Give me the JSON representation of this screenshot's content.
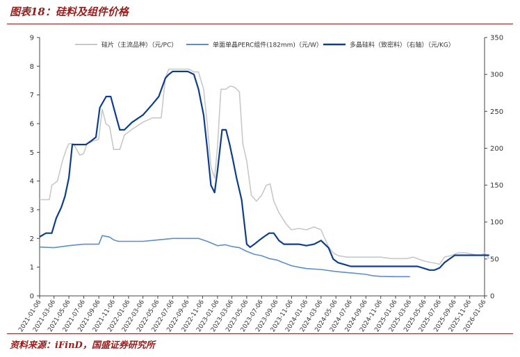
{
  "figure_title": "图表18：硅料及组件价格",
  "source_note": "资料来源：iFinD，国盛证券研究所",
  "colors": {
    "title": "#9b1b1b",
    "wafer": "#c8c8c8",
    "module": "#5b8ec9",
    "poly": "#0d3d8c"
  },
  "chart_data": {
    "type": "line",
    "title": "",
    "ylim": [
      0,
      9
    ],
    "y2lim": [
      0,
      350
    ],
    "y_ticks": [
      0,
      1,
      2,
      3,
      4,
      5,
      6,
      7,
      8,
      9
    ],
    "y2_ticks": [
      0,
      50,
      100,
      150,
      200,
      250,
      300,
      350
    ],
    "x_ticks": [
      "2021-01-06",
      "2021-03-06",
      "2021-05-06",
      "2021-07-06",
      "2021-09-06",
      "2021-11-06",
      "2022-01-06",
      "2022-03-06",
      "2022-05-06",
      "2022-07-06",
      "2022-09-06",
      "2022-11-06",
      "2023-01-06",
      "2023-03-06",
      "2023-05-06",
      "2023-07-06",
      "2023-09-06",
      "2023-11-06",
      "2024-01-06",
      "2024-03-06",
      "2024-05-06",
      "2024-07-06",
      "2024-09-06",
      "2024-11-06",
      "2025-01-06",
      "2025-03-06",
      "2025-05-06",
      "2025-07-06",
      "2025-09-06",
      "2025-11-06",
      "2026-01-06"
    ],
    "legend_position": "top",
    "grid": false,
    "series": [
      {
        "name": "硅片（主流品种）（元/PC）",
        "axis": "left",
        "color": "#c8c8c8",
        "x": [
          "2021-01-06",
          "2021-02-15",
          "2021-02-25",
          "2021-03-20",
          "2021-04-10",
          "2021-04-25",
          "2021-05-06",
          "2021-05-25",
          "2021-06-20",
          "2021-07-05",
          "2021-07-20",
          "2021-08-15",
          "2021-09-05",
          "2021-09-20",
          "2021-10-05",
          "2021-10-20",
          "2021-11-06",
          "2021-12-01",
          "2021-12-20",
          "2022-01-20",
          "2022-03-06",
          "2022-04-15",
          "2022-05-20",
          "2022-06-06",
          "2022-06-20",
          "2022-06-28",
          "2022-07-20",
          "2022-09-10",
          "2022-10-01",
          "2022-10-20",
          "2022-11-10",
          "2022-11-25",
          "2022-12-10",
          "2022-12-25",
          "2023-01-06",
          "2023-01-20",
          "2023-02-10",
          "2023-02-25",
          "2023-03-06",
          "2023-03-20",
          "2023-04-06",
          "2023-04-20",
          "2023-05-06",
          "2023-05-25",
          "2023-06-15",
          "2023-07-06",
          "2023-07-25",
          "2023-08-10",
          "2023-08-25",
          "2023-09-15",
          "2023-10-15",
          "2023-11-06",
          "2023-12-06",
          "2024-01-06",
          "2024-02-06",
          "2024-03-06",
          "2024-04-06",
          "2024-04-25",
          "2024-05-15",
          "2024-06-20",
          "2024-08-20",
          "2024-10-20",
          "2024-11-06",
          "2024-12-20",
          "2025-02-20",
          "2025-03-20",
          "2025-04-20",
          "2025-05-10",
          "2025-06-10",
          "2025-07-06",
          "2025-07-25",
          "2025-08-20",
          "2025-09-20",
          "2025-10-20",
          "2025-11-20",
          "2025-12-20",
          "2026-01-06",
          "2026-01-25"
        ],
        "y": [
          3.35,
          3.35,
          3.85,
          4.0,
          4.7,
          5.1,
          5.3,
          5.3,
          4.9,
          4.95,
          5.3,
          5.4,
          5.45,
          6.5,
          6.0,
          5.9,
          5.1,
          5.1,
          5.6,
          5.8,
          6.05,
          6.2,
          6.2,
          7.6,
          7.9,
          7.9,
          7.9,
          7.9,
          7.8,
          7.8,
          7.2,
          6.0,
          4.5,
          4.1,
          5.2,
          7.2,
          7.2,
          7.3,
          7.3,
          7.25,
          7.1,
          5.3,
          4.7,
          3.5,
          3.3,
          3.5,
          3.85,
          3.9,
          3.3,
          2.9,
          2.5,
          2.3,
          2.35,
          2.3,
          2.4,
          2.3,
          1.7,
          1.5,
          1.4,
          1.35,
          1.35,
          1.35,
          1.35,
          1.3,
          1.3,
          1.35,
          1.25,
          1.2,
          1.15,
          1.1,
          1.35,
          1.4,
          1.5,
          1.5,
          1.45,
          1.4,
          1.5,
          1.3
        ]
      },
      {
        "name": "单面单晶PERC组件(182mm)（元/W）",
        "axis": "left",
        "color": "#5b8ec9",
        "x": [
          "2021-01-06",
          "2021-03-06",
          "2021-05-06",
          "2021-07-06",
          "2021-09-06",
          "2021-09-20",
          "2021-10-20",
          "2021-11-06",
          "2021-11-25",
          "2022-01-06",
          "2022-03-06",
          "2022-05-06",
          "2022-07-06",
          "2022-09-06",
          "2022-10-20",
          "2022-11-25",
          "2023-01-06",
          "2023-02-06",
          "2023-03-06",
          "2023-04-06",
          "2023-05-06",
          "2023-06-06",
          "2023-07-06",
          "2023-08-06",
          "2023-09-06",
          "2023-10-06",
          "2023-11-06",
          "2023-12-06",
          "2024-01-06",
          "2024-03-06",
          "2024-05-06",
          "2024-07-06",
          "2024-09-06",
          "2024-10-06",
          "2024-11-06",
          "2025-01-06",
          "2025-03-06"
        ],
        "y": [
          1.7,
          1.68,
          1.75,
          1.8,
          1.8,
          2.1,
          2.05,
          1.95,
          1.9,
          1.9,
          1.9,
          1.95,
          2.0,
          2.0,
          2.0,
          1.9,
          1.75,
          1.78,
          1.72,
          1.68,
          1.55,
          1.45,
          1.4,
          1.3,
          1.25,
          1.15,
          1.05,
          1.0,
          0.95,
          0.92,
          0.85,
          0.8,
          0.75,
          0.7,
          0.68,
          0.67,
          0.67
        ]
      },
      {
        "name": "多晶硅料（致密料）（右轴）（元/KG）",
        "axis": "right",
        "color": "#0d3d8c",
        "x": [
          "2021-01-06",
          "2021-02-01",
          "2021-02-25",
          "2021-03-15",
          "2021-04-05",
          "2021-04-20",
          "2021-05-06",
          "2021-05-20",
          "2021-06-20",
          "2021-07-15",
          "2021-08-06",
          "2021-08-25",
          "2021-09-10",
          "2021-10-06",
          "2021-10-25",
          "2021-11-10",
          "2021-12-01",
          "2021-12-20",
          "2022-01-20",
          "2022-03-06",
          "2022-04-15",
          "2022-05-10",
          "2022-06-06",
          "2022-06-20",
          "2022-07-06",
          "2022-07-20",
          "2022-09-06",
          "2022-10-01",
          "2022-10-20",
          "2022-11-10",
          "2022-11-25",
          "2022-12-10",
          "2022-12-25",
          "2023-01-06",
          "2023-01-25",
          "2023-02-10",
          "2023-02-25",
          "2023-03-10",
          "2023-03-25",
          "2023-04-15",
          "2023-05-06",
          "2023-05-20",
          "2023-06-06",
          "2023-06-25",
          "2023-07-15",
          "2023-08-06",
          "2023-08-25",
          "2023-09-15",
          "2023-10-06",
          "2023-11-06",
          "2023-12-06",
          "2024-01-06",
          "2024-02-06",
          "2024-03-06",
          "2024-04-06",
          "2024-04-25",
          "2024-05-15",
          "2024-07-06",
          "2024-09-06",
          "2024-11-06",
          "2025-01-06",
          "2025-03-06",
          "2025-04-06",
          "2025-05-06",
          "2025-05-25",
          "2025-06-15",
          "2025-07-06",
          "2025-07-25",
          "2025-08-15",
          "2025-09-06",
          "2025-11-06",
          "2026-01-06",
          "2026-01-25"
        ],
        "y": [
          80,
          85,
          85,
          105,
          120,
          135,
          160,
          205,
          205,
          205,
          210,
          215,
          255,
          270,
          270,
          250,
          225,
          225,
          235,
          245,
          260,
          270,
          295,
          300,
          304,
          304,
          304,
          300,
          280,
          245,
          200,
          150,
          140,
          170,
          225,
          225,
          205,
          185,
          160,
          130,
          70,
          66,
          70,
          75,
          80,
          85,
          85,
          75,
          70,
          70,
          70,
          68,
          70,
          75,
          65,
          50,
          45,
          40,
          40,
          40,
          40,
          40,
          40,
          37,
          35,
          35,
          38,
          45,
          50,
          55,
          55,
          55,
          55
        ]
      }
    ]
  }
}
